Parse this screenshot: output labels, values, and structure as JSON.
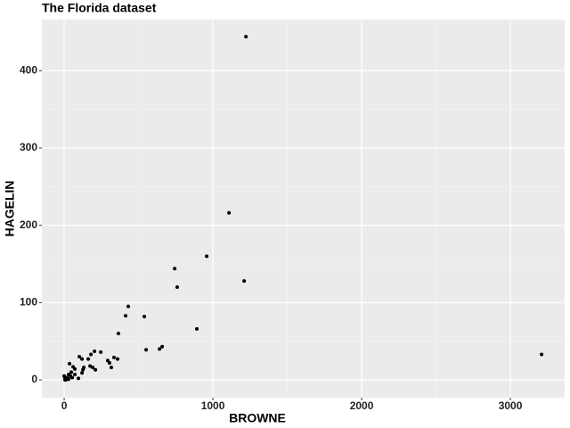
{
  "chart_data": {
    "type": "scatter",
    "title": "The Florida dataset",
    "x_label": "BROWNE",
    "y_label": "HAGELIN",
    "color": "#000000",
    "grid": true,
    "xlim": [
      -150,
      3365
    ],
    "ylim": [
      -23,
      466
    ],
    "xticks": [
      0,
      1000,
      2000,
      3000
    ],
    "yticks": [
      0,
      100,
      200,
      300,
      400
    ],
    "x": [
      1222,
      1108,
      958,
      743,
      760,
      1210,
      892,
      3210,
      431,
      413,
      539,
      365,
      659,
      641,
      551,
      246,
      204,
      180,
      102,
      120,
      162,
      335,
      359,
      293,
      305,
      317,
      174,
      192,
      210,
      132,
      126,
      120,
      96,
      36,
      60,
      72,
      48,
      30,
      18,
      6,
      12,
      30,
      54,
      72,
      0,
      6,
      42
    ],
    "values": [
      444,
      216,
      160,
      144,
      120,
      128,
      66,
      33,
      95,
      83,
      82,
      60,
      43,
      40,
      39,
      36,
      37,
      33,
      30,
      27,
      27,
      29,
      27,
      25,
      22,
      16,
      18,
      16,
      13,
      16,
      13,
      9,
      2,
      21,
      17,
      14,
      10,
      7,
      3,
      2,
      0,
      1,
      3,
      7,
      5,
      0,
      5
    ]
  }
}
